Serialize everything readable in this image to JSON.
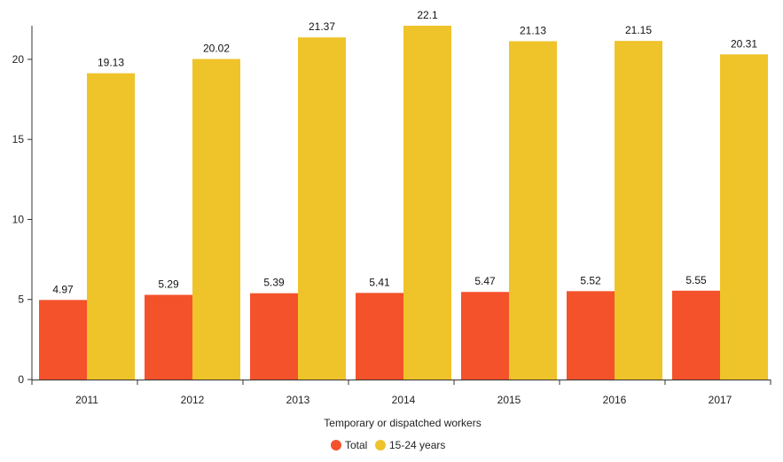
{
  "chart_data": {
    "type": "bar",
    "categories": [
      "2011",
      "2012",
      "2013",
      "2014",
      "2015",
      "2016",
      "2017"
    ],
    "series": [
      {
        "name": "Total",
        "color": "#f4522b",
        "values": [
          4.97,
          5.29,
          5.39,
          5.41,
          5.47,
          5.52,
          5.55
        ]
      },
      {
        "name": "15-24 years",
        "color": "#efc32a",
        "values": [
          19.13,
          20.02,
          21.37,
          22.1,
          21.13,
          21.15,
          20.31
        ]
      }
    ],
    "xlabel": "Temporary or dispatched workers",
    "ylabel": "",
    "ylim": [
      0,
      22.1
    ],
    "yticks": [
      0,
      5,
      10,
      15,
      20
    ],
    "grid": false,
    "legend_position": "bottom"
  }
}
